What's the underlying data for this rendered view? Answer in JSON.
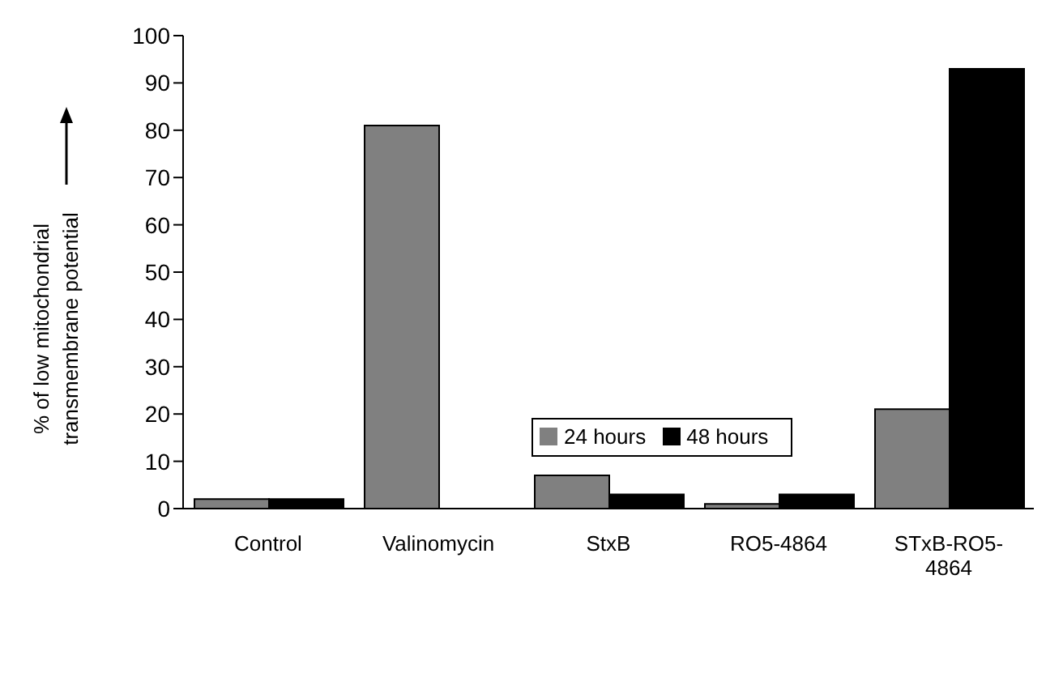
{
  "chart_data": {
    "type": "bar",
    "ylabel": "% of low mitochondrial transmembrane potential",
    "categories": [
      "Control",
      "Valinomycin",
      "StxB",
      "RO5-4864",
      "STxB-RO5-4864"
    ],
    "series": [
      {
        "name": "24 hours",
        "color": "#808080",
        "values": [
          2,
          81,
          7,
          1,
          21
        ]
      },
      {
        "name": "48 hours",
        "color": "#000000",
        "values": [
          2,
          0,
          3,
          3,
          93
        ]
      }
    ],
    "ylim": [
      0,
      100
    ],
    "yticks": [
      0,
      10,
      20,
      30,
      40,
      50,
      60,
      70,
      80,
      90,
      100
    ],
    "grid": false,
    "legend": "center"
  }
}
